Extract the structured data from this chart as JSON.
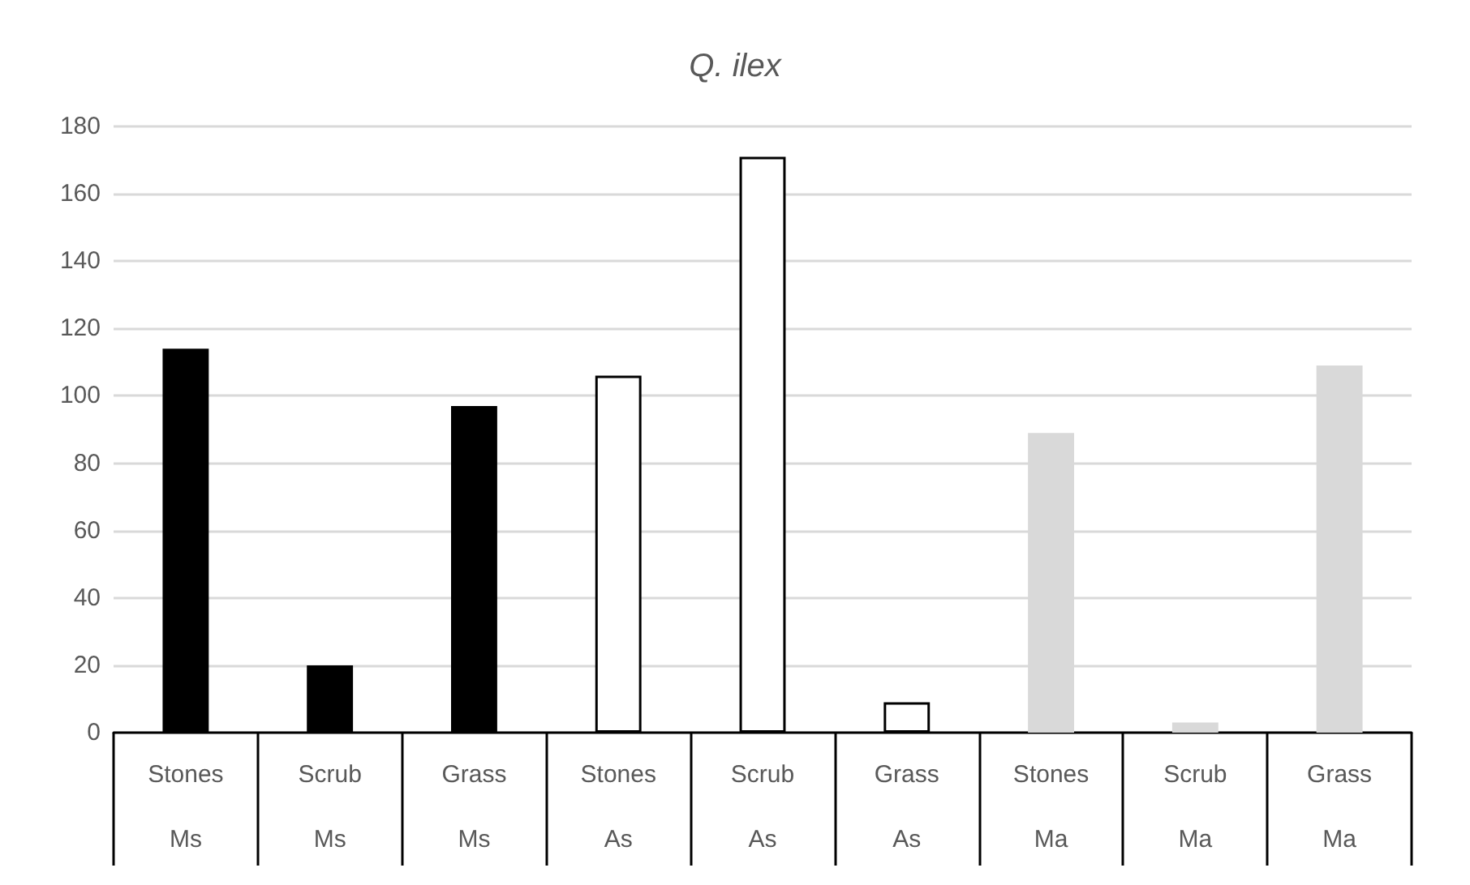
{
  "chart_data": {
    "type": "bar",
    "title": "Q. ilex",
    "categories": [
      "Stones\nMs",
      "Scrub\nMs",
      "Grass\nMs",
      "Stones\nAs",
      "Scrub\nAs",
      "Grass\nAs",
      "Stones\nMa",
      "Scrub\nMa",
      "Grass\nMa"
    ],
    "values": [
      114,
      20,
      97,
      106,
      171,
      9,
      89,
      3,
      109
    ],
    "colors": [
      "#000000",
      "#000000",
      "#000000",
      "#ffffff",
      "#ffffff",
      "#ffffff",
      "#d9d9d9",
      "#d9d9d9",
      "#d9d9d9"
    ],
    "ylim": [
      0,
      180
    ],
    "yticks": [
      0,
      20,
      40,
      60,
      80,
      100,
      120,
      140,
      160,
      180
    ],
    "grid": "y"
  }
}
